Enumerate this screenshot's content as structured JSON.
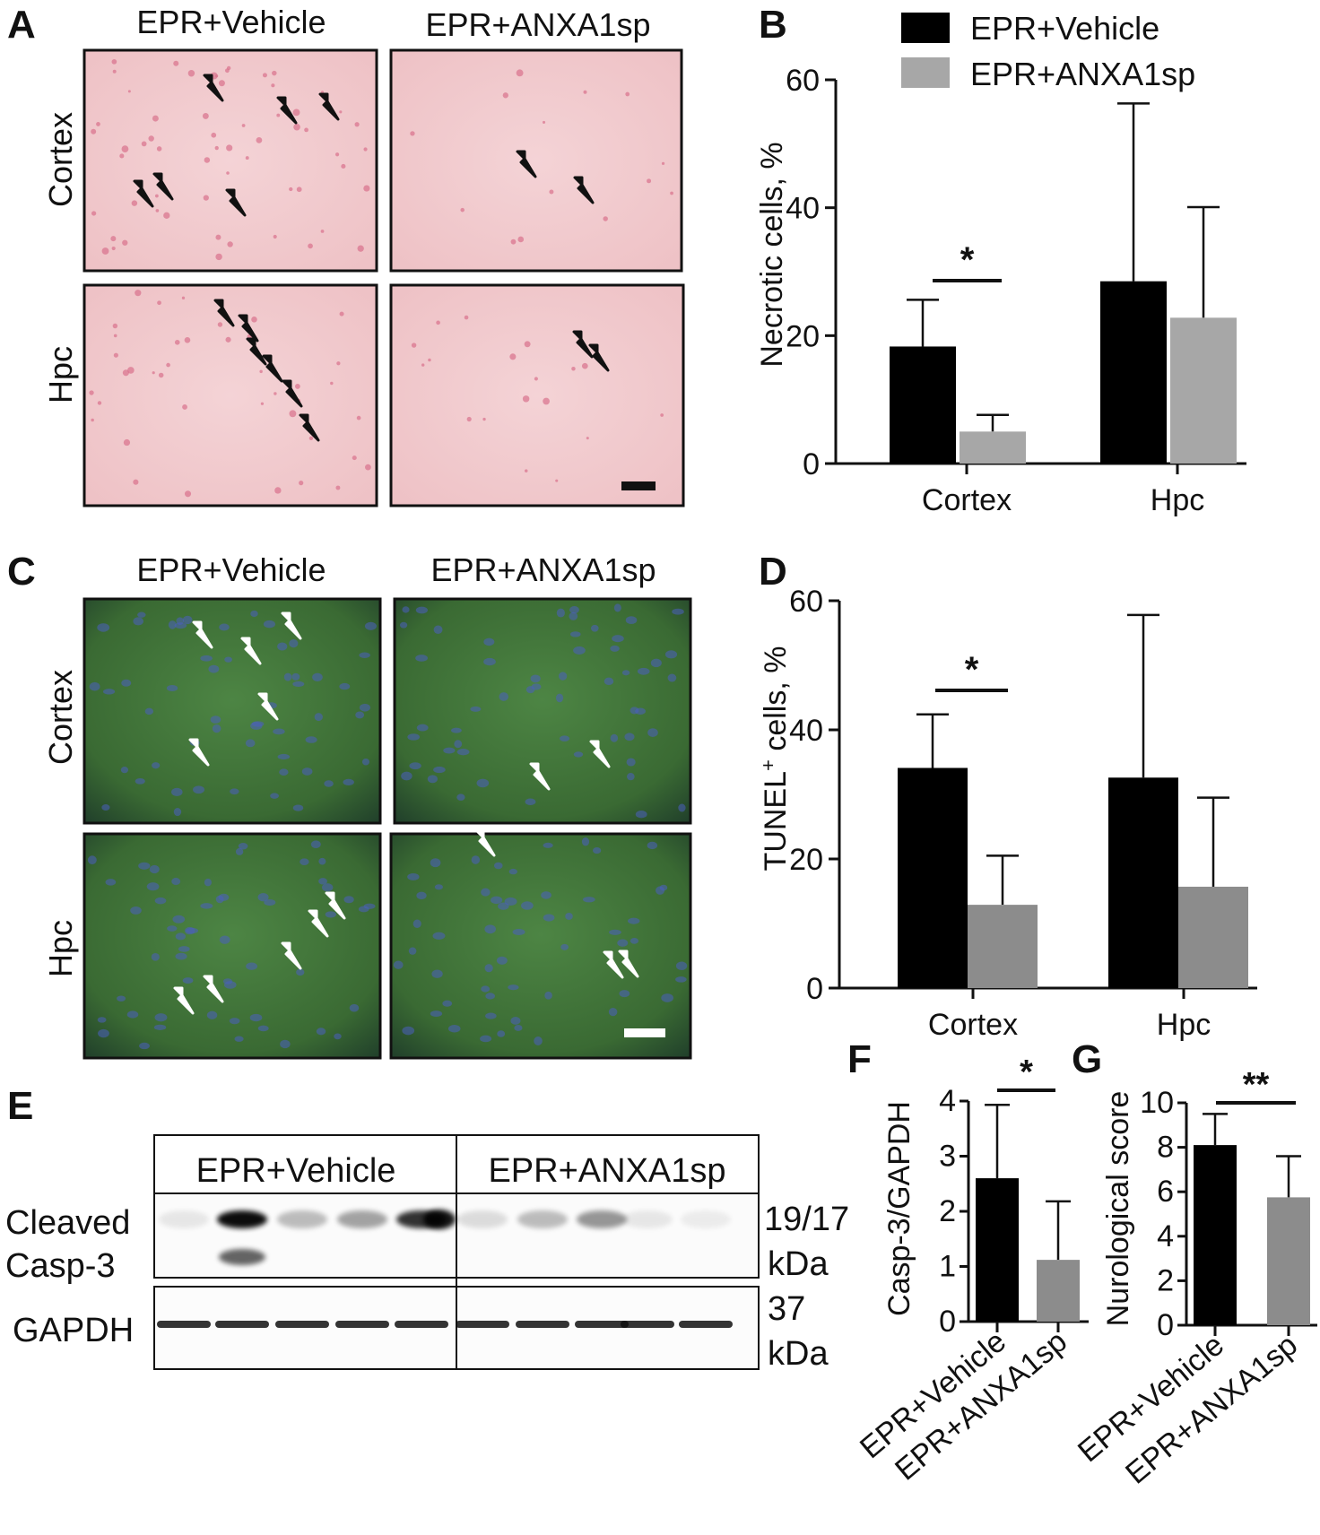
{
  "colors": {
    "vehicle": "#000000",
    "anxa1sp_gray_light": "#a7a7a7",
    "anxa1sp_gray": "#8c8c8c",
    "he_stain": "#f1c9cc",
    "tunel_bg": "#3f6a38",
    "arrow_black": "#111111",
    "arrow_white": "#ffffff"
  },
  "panel_letters": {
    "a": "A",
    "b": "B",
    "c": "C",
    "d": "D",
    "e": "E",
    "f": "F",
    "g": "G"
  },
  "micrographs": {
    "col_titles": [
      "EPR+Vehicle",
      "EPR+ANXA1sp"
    ],
    "row_labels": [
      "Cortex",
      "Hpc"
    ]
  },
  "chart_data": [
    {
      "panel": "B",
      "type": "bar",
      "categories": [
        "Cortex",
        "Hpc"
      ],
      "series": [
        {
          "name": "EPR+Vehicle",
          "values": [
            18.3,
            28.5
          ],
          "error": [
            7.3,
            27.8
          ]
        },
        {
          "name": "EPR+ANXA1sp",
          "values": [
            5.0,
            22.8
          ],
          "error": [
            2.6,
            17.3
          ]
        }
      ],
      "xlabel": "",
      "ylabel": "Necrotic cells, %",
      "ylim": [
        0,
        60
      ],
      "yticks": [
        0,
        20,
        40,
        60
      ],
      "annotations": [
        "*"
      ],
      "legend": "top-right"
    },
    {
      "panel": "D",
      "type": "bar",
      "categories": [
        "Cortex",
        "Hpc"
      ],
      "series": [
        {
          "name": "EPR+Vehicle",
          "values": [
            34.1,
            32.6
          ],
          "error": [
            8.3,
            25.2
          ]
        },
        {
          "name": "EPR+ANXA1sp",
          "values": [
            12.9,
            15.7
          ],
          "error": [
            7.6,
            13.8
          ]
        }
      ],
      "xlabel": "",
      "ylabel": "TUNEL",
      "ylabel_sup": "+",
      "ylabel_tail": " cells, %",
      "ylim": [
        0,
        60
      ],
      "yticks": [
        0,
        20,
        40,
        60
      ],
      "annotations": [
        "*"
      ]
    },
    {
      "panel": "F",
      "type": "bar",
      "categories": [
        "EPR+Vehicle",
        "EPR+ANXA1sp"
      ],
      "values": [
        2.6,
        1.12
      ],
      "error": [
        1.33,
        1.06
      ],
      "xlabel": "",
      "ylabel": "Casp-3/GAPDH",
      "ylim": [
        0,
        4
      ],
      "yticks": [
        0,
        1,
        2,
        3,
        4
      ],
      "annotations": [
        "*"
      ]
    },
    {
      "panel": "G",
      "type": "bar",
      "categories": [
        "EPR+Vehicle",
        "EPR+ANXA1sp"
      ],
      "values": [
        8.1,
        5.75
      ],
      "error": [
        1.4,
        1.85
      ],
      "xlabel": "",
      "ylabel": "Nurological score",
      "ylim": [
        0,
        10
      ],
      "yticks": [
        0,
        2,
        4,
        6,
        8,
        10
      ],
      "annotations": [
        "**"
      ]
    }
  ],
  "western_blot": {
    "group_labels": [
      "EPR+Vehicle",
      "EPR+ANXA1sp"
    ],
    "cleaved_label_line1": "Cleaved",
    "cleaved_label_line2": "Casp-3",
    "gapdh_label": "GAPDH",
    "cleaved_kda_line1": "19/17",
    "cleaved_kda_line2": "kDa",
    "gapdh_kda_line1": "37",
    "gapdh_kda_line2": "kDa"
  }
}
